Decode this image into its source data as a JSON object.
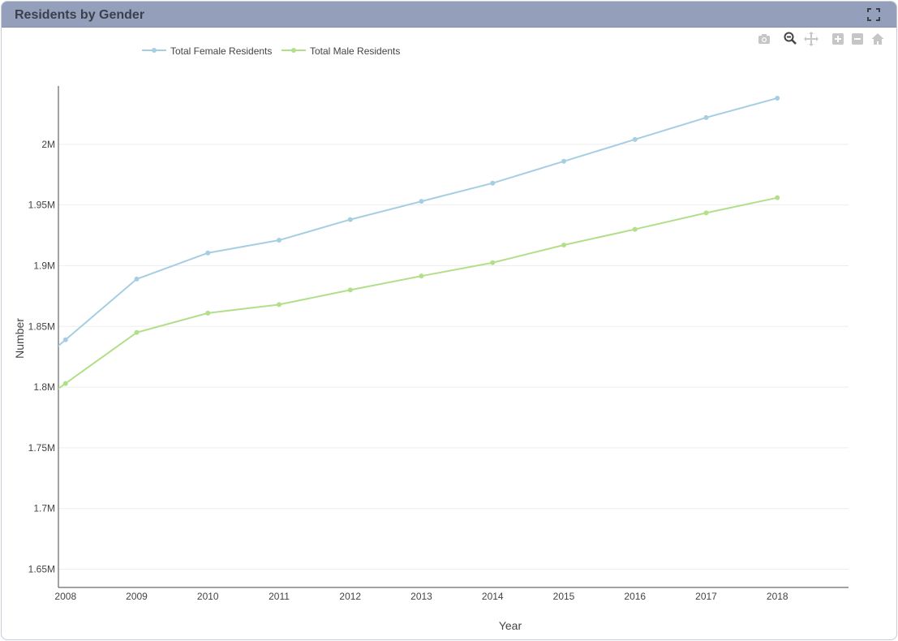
{
  "panel": {
    "title": "Residents by Gender"
  },
  "icons": {
    "expand": "fullscreen-icon",
    "camera": "camera-icon",
    "zoom": "zoom-icon",
    "pan": "pan-icon",
    "zoom_in": "zoom-in-icon",
    "zoom_out": "zoom-out-icon",
    "reset": "home-icon"
  },
  "colors": {
    "header": "#949fbb",
    "female": "#a6cee3",
    "male": "#b2df8a",
    "axis": "#444444",
    "grid": "#eeeeee"
  },
  "chart_data": {
    "type": "line",
    "title": "",
    "xlabel": "Year",
    "ylabel": "Number",
    "x": [
      2008,
      2009,
      2010,
      2011,
      2012,
      2013,
      2014,
      2015,
      2016,
      2017,
      2018
    ],
    "series": [
      {
        "name": "Total Female Residents",
        "values": [
          1839000,
          1889000,
          1910500,
          1921000,
          1938000,
          1953000,
          1968000,
          1986000,
          2004000,
          2022000,
          2038000
        ]
      },
      {
        "name": "Total Male Residents",
        "values": [
          1803000,
          1845000,
          1861000,
          1868000,
          1880000,
          1891500,
          1902500,
          1917000,
          1930000,
          1943500,
          1956000
        ]
      }
    ],
    "yticks": [
      1650000,
      1700000,
      1750000,
      1800000,
      1850000,
      1900000,
      1950000,
      2000000
    ],
    "ytick_labels": [
      "1.65M",
      "1.7M",
      "1.75M",
      "1.8M",
      "1.85M",
      "1.9M",
      "1.95M",
      "2M"
    ],
    "xticks": [
      2008,
      2009,
      2010,
      2011,
      2012,
      2013,
      2014,
      2015,
      2016,
      2017,
      2018
    ],
    "xtick_labels": [
      "2008",
      "2009",
      "2010",
      "2011",
      "2012",
      "2013",
      "2014",
      "2015",
      "2016",
      "2017",
      "2018"
    ],
    "xlim": [
      2007.9,
      2019
    ],
    "ylim": [
      1635000,
      2048000
    ],
    "grid": true,
    "legend": "top-left"
  }
}
